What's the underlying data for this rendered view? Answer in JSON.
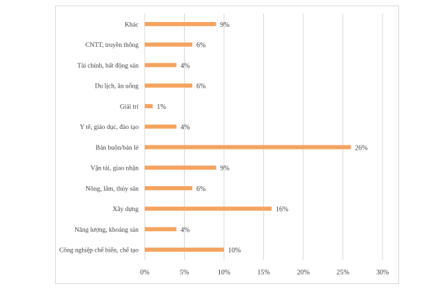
{
  "chart_data": {
    "type": "bar",
    "orientation": "horizontal",
    "title": "",
    "xlabel": "",
    "ylabel": "",
    "categories": [
      "Khác",
      "CNTT, truyền thông",
      "Tài chính, bất động sản",
      "Du lịch, ăn uống",
      "Giải trí",
      "Y tế, giáo dục, đào tạo",
      "Bán buôn/bán lẻ",
      "Vận tải, giao nhận",
      "Nông, lâm, thủy sản",
      "Xây dựng",
      "Năng lượng, khoáng sản",
      "Công nghiệp chế biến, chế tạo"
    ],
    "values": [
      9,
      6,
      4,
      6,
      1,
      4,
      26,
      9,
      6,
      16,
      4,
      10
    ],
    "value_labels": [
      "9%",
      "6%",
      "4%",
      "6%",
      "1%",
      "4%",
      "26%",
      "9%",
      "6%",
      "16%",
      "4%",
      "10%"
    ],
    "xlim": [
      0,
      30
    ],
    "xticks": [
      0,
      5,
      10,
      15,
      20,
      25,
      30
    ],
    "xtick_labels": [
      "0%",
      "5%",
      "10%",
      "15%",
      "20%",
      "25%",
      "30%"
    ],
    "grid": "vertical",
    "legend": "none",
    "bar_color": "#f4a460",
    "grid_color": "#d9d9d9"
  }
}
